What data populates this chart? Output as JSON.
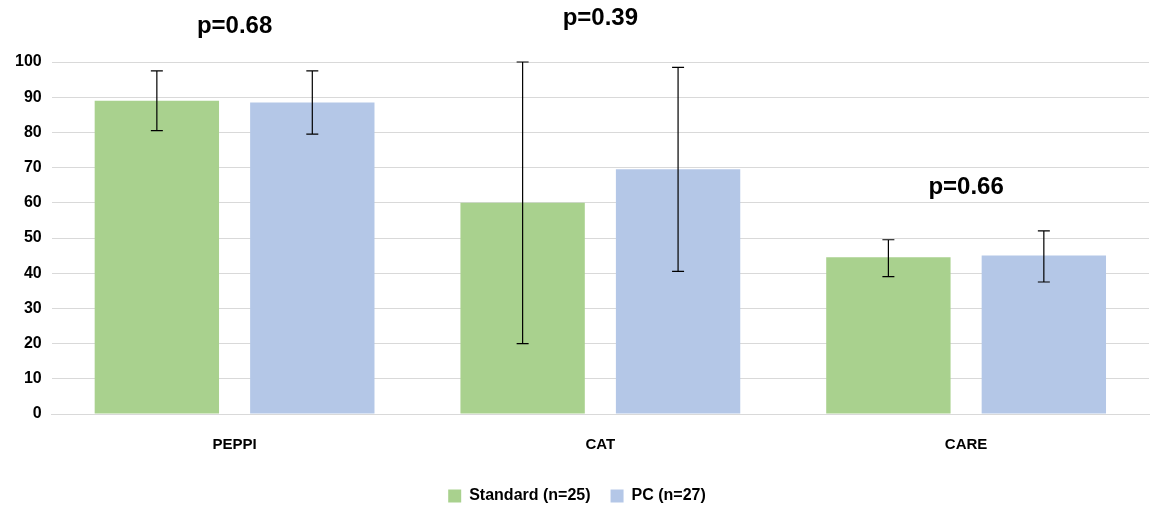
{
  "chart_data": {
    "type": "bar",
    "categories": [
      "PEPPI",
      "CAT",
      "CARE"
    ],
    "series": [
      {
        "name": "Standard (n=25)",
        "color": "#a9d18e",
        "values": [
          89,
          60,
          44.5
        ],
        "errors": [
          [
            80.5,
            97.5
          ],
          [
            20,
            100
          ],
          [
            39,
            49.5
          ]
        ]
      },
      {
        "name": "PC (n=27)",
        "color": "#b4c7e7",
        "values": [
          88.5,
          69.5,
          45
        ],
        "errors": [
          [
            79.5,
            97.5
          ],
          [
            40.5,
            98.5
          ],
          [
            37.5,
            52
          ]
        ]
      }
    ],
    "ylim": [
      0,
      100
    ],
    "yticks": [
      0,
      10,
      20,
      30,
      40,
      50,
      60,
      70,
      80,
      90,
      100
    ],
    "grid": "y",
    "legend": "bottom",
    "annotations": [
      "p=0.68",
      "p=0.39",
      "p=0.66"
    ]
  }
}
